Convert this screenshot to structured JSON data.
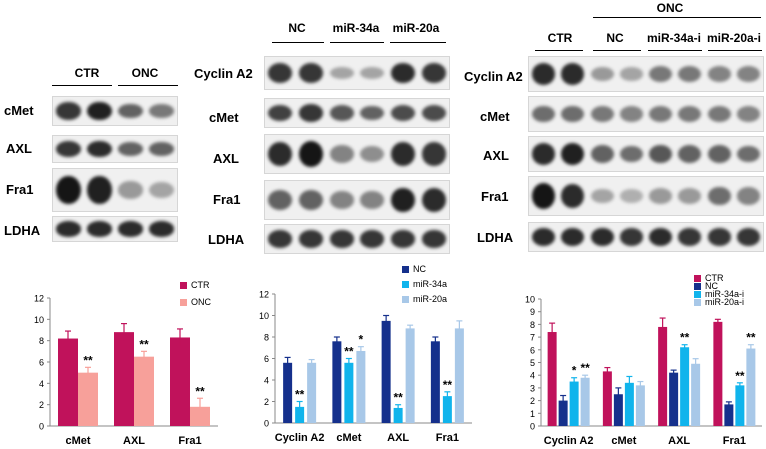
{
  "panel1": {
    "headers": [
      "CTR",
      "ONC"
    ],
    "rows": [
      {
        "label": "cMet",
        "intensity": [
          0.8,
          0.9,
          0.6,
          0.5
        ]
      },
      {
        "label": "AXL",
        "intensity": [
          0.8,
          0.85,
          0.6,
          0.6
        ]
      },
      {
        "label": "Fra1",
        "intensity": [
          0.95,
          0.9,
          0.35,
          0.3
        ]
      },
      {
        "label": "LDHA",
        "intensity": [
          0.85,
          0.85,
          0.85,
          0.85
        ]
      }
    ]
  },
  "panel2": {
    "headers": [
      "NC",
      "miR-34a",
      "miR-20a"
    ],
    "rows": [
      {
        "label": "Cyclin A2",
        "intensity": [
          0.8,
          0.8,
          0.3,
          0.3,
          0.85,
          0.8
        ]
      },
      {
        "label": "cMet",
        "intensity": [
          0.75,
          0.8,
          0.65,
          0.6,
          0.7,
          0.7
        ]
      },
      {
        "label": "AXL",
        "intensity": [
          0.85,
          0.95,
          0.45,
          0.4,
          0.85,
          0.8
        ]
      },
      {
        "label": "Fra1",
        "intensity": [
          0.6,
          0.6,
          0.45,
          0.45,
          0.9,
          0.85
        ]
      },
      {
        "label": "LDHA",
        "intensity": [
          0.8,
          0.8,
          0.8,
          0.8,
          0.8,
          0.8
        ]
      }
    ]
  },
  "panel3": {
    "onc_header": "ONC",
    "headers": [
      "CTR",
      "NC",
      "miR-34a-i",
      "miR-20a-i"
    ],
    "rows": [
      {
        "label": "Cyclin A2",
        "intensity": [
          0.85,
          0.85,
          0.35,
          0.3,
          0.5,
          0.5,
          0.45,
          0.45
        ]
      },
      {
        "label": "cMet",
        "intensity": [
          0.55,
          0.55,
          0.5,
          0.45,
          0.5,
          0.5,
          0.5,
          0.45
        ]
      },
      {
        "label": "AXL",
        "intensity": [
          0.85,
          0.9,
          0.6,
          0.55,
          0.65,
          0.6,
          0.6,
          0.55
        ]
      },
      {
        "label": "Fra1",
        "intensity": [
          0.95,
          0.85,
          0.3,
          0.25,
          0.35,
          0.35,
          0.55,
          0.45
        ]
      },
      {
        "label": "LDHA",
        "intensity": [
          0.85,
          0.85,
          0.85,
          0.8,
          0.85,
          0.8,
          0.8,
          0.8
        ]
      }
    ]
  },
  "chart_data": [
    {
      "type": "bar",
      "categories": [
        "cMet",
        "AXL",
        "Fra1"
      ],
      "series": [
        {
          "name": "CTR",
          "color": "#c0125b",
          "values": [
            8.2,
            8.8,
            8.3
          ],
          "errors": [
            0.7,
            0.8,
            0.8
          ]
        },
        {
          "name": "ONC",
          "color": "#f7a09a",
          "values": [
            5.0,
            6.5,
            1.8
          ],
          "errors": [
            0.5,
            0.5,
            0.8
          ]
        }
      ],
      "ylim": [
        0,
        12
      ],
      "yticks": [
        0,
        2,
        4,
        6,
        8,
        10,
        12
      ],
      "legend": "top-right",
      "annotations": [
        {
          "series": 1,
          "category": 0,
          "text": "**"
        },
        {
          "series": 1,
          "category": 1,
          "text": "**"
        },
        {
          "series": 1,
          "category": 2,
          "text": "**"
        }
      ]
    },
    {
      "type": "bar",
      "categories": [
        "Cyclin A2",
        "cMet",
        "AXL",
        "Fra1"
      ],
      "series": [
        {
          "name": "NC",
          "color": "#15308c",
          "values": [
            5.6,
            7.6,
            9.5,
            7.6
          ],
          "errors": [
            0.5,
            0.4,
            0.5,
            0.4
          ]
        },
        {
          "name": "miR-34a",
          "color": "#10b4ec",
          "values": [
            1.5,
            5.6,
            1.4,
            2.5
          ],
          "errors": [
            0.5,
            0.4,
            0.3,
            0.4
          ]
        },
        {
          "name": "miR-20a",
          "color": "#a8c8e8",
          "values": [
            5.6,
            6.7,
            8.8,
            8.8
          ],
          "errors": [
            0.3,
            0.4,
            0.3,
            0.7
          ]
        }
      ],
      "ylim": [
        0,
        12
      ],
      "yticks": [
        0,
        2,
        4,
        6,
        8,
        10,
        12
      ],
      "legend": "top-right",
      "annotations": [
        {
          "series": 1,
          "category": 0,
          "text": "**"
        },
        {
          "series": 1,
          "category": 1,
          "text": "**"
        },
        {
          "series": 2,
          "category": 1,
          "text": "*"
        },
        {
          "series": 1,
          "category": 2,
          "text": "**"
        },
        {
          "series": 1,
          "category": 3,
          "text": "**"
        }
      ]
    },
    {
      "type": "bar",
      "categories": [
        "Cyclin A2",
        "cMet",
        "AXL",
        "Fra1"
      ],
      "series": [
        {
          "name": "CTR",
          "color": "#c0125b",
          "values": [
            7.4,
            4.3,
            7.8,
            8.2
          ],
          "errors": [
            0.7,
            0.3,
            0.7,
            0.2
          ]
        },
        {
          "name": "NC",
          "color": "#15308c",
          "values": [
            2.0,
            2.5,
            4.2,
            1.7
          ],
          "errors": [
            0.4,
            0.5,
            0.2,
            0.2
          ]
        },
        {
          "name": "miR-34a-i",
          "color": "#10b4ec",
          "values": [
            3.5,
            3.4,
            6.2,
            3.2
          ],
          "errors": [
            0.3,
            0.5,
            0.2,
            0.2
          ]
        },
        {
          "name": "miR-20a-i",
          "color": "#a8c8e8",
          "values": [
            3.8,
            3.2,
            4.9,
            6.1
          ],
          "errors": [
            0.2,
            0.3,
            0.4,
            0.3
          ]
        }
      ],
      "ylim": [
        0,
        10
      ],
      "yticks": [
        0,
        1,
        2,
        3,
        4,
        5,
        6,
        7,
        8,
        9,
        10
      ],
      "legend": "top-right",
      "annotations": [
        {
          "series": 2,
          "category": 0,
          "text": "*"
        },
        {
          "series": 3,
          "category": 0,
          "text": "**"
        },
        {
          "series": 2,
          "category": 2,
          "text": "**"
        },
        {
          "series": 2,
          "category": 3,
          "text": "**"
        },
        {
          "series": 3,
          "category": 3,
          "text": "**"
        }
      ]
    }
  ]
}
